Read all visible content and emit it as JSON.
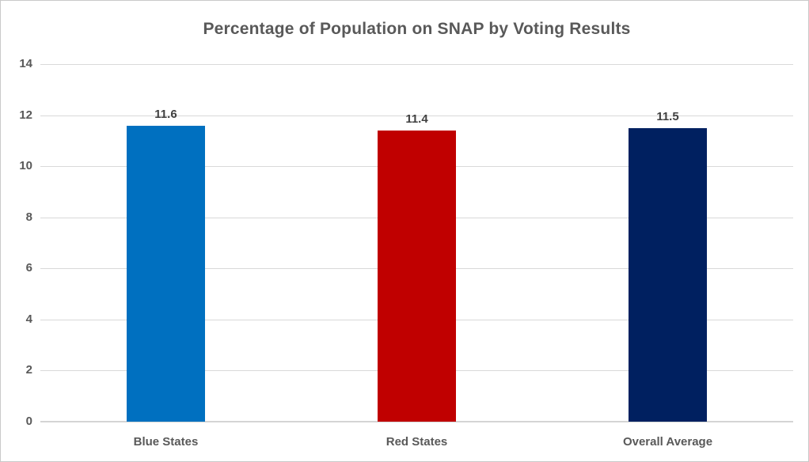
{
  "chart_data": {
    "type": "bar",
    "title": "Percentage of Population on SNAP by Voting Results",
    "categories": [
      "Blue States",
      "Red States",
      "Overall Average"
    ],
    "values": [
      11.6,
      11.4,
      11.5
    ],
    "data_labels": [
      "11.6",
      "11.4",
      "11.5"
    ],
    "bar_colors": [
      "#0070C0",
      "#C00000",
      "#002060"
    ],
    "xlabel": "",
    "ylabel": "",
    "ylim": [
      0,
      14
    ],
    "yticks": [
      0,
      2,
      4,
      6,
      8,
      10,
      12,
      14
    ],
    "grid": "horizontal",
    "legend": "none"
  },
  "style": {
    "background": "#FFFFFF",
    "border_color": "#C9C9C9",
    "gridline_color": "#D9D9D9",
    "title_color": "#595959",
    "axis_label_color": "#595959",
    "data_label_color": "#404040"
  }
}
